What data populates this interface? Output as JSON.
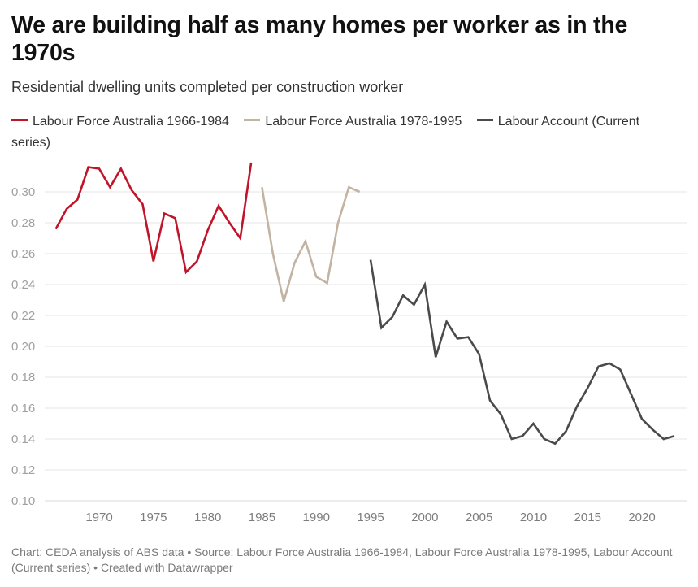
{
  "header": {
    "title": "We are building half as many homes per worker as in the 1970s",
    "subtitle": "Residential dwelling units completed per construction worker"
  },
  "legend": [
    {
      "label": "Labour Force Australia 1966-1984",
      "color": "#c0142a"
    },
    {
      "label": "Labour Force Australia 1978-1995",
      "color": "#c2b3a2"
    },
    {
      "label": "Labour Account (Current series)",
      "color": "#4a4a4a"
    }
  ],
  "footer": {
    "chart_credit": "Chart: CEDA analysis of ABS data",
    "separator": " • ",
    "source": "Source: Labour Force Australia 1966-1984, Labour Force Australia 1978-1995, Labour Account (Current series) ",
    "created": "Created with Datawrapper"
  },
  "chart_data": {
    "type": "line",
    "title": "We are building half as many homes per worker as in the 1970s",
    "subtitle": "Residential dwelling units completed per construction worker",
    "xlabel": "",
    "ylabel": "",
    "xlim": [
      1966,
      2023
    ],
    "ylim": [
      0.1,
      0.32
    ],
    "grid": true,
    "legend_position": "top-left",
    "x_ticks": [
      1970,
      1975,
      1980,
      1985,
      1990,
      1995,
      2000,
      2005,
      2010,
      2015,
      2020
    ],
    "x_tick_labels": [
      "1970",
      "1975",
      "1980",
      "1985",
      "1990",
      "1995",
      "2000",
      "2005",
      "2010",
      "2015",
      "2020"
    ],
    "y_ticks": [
      0.1,
      0.12,
      0.14,
      0.16,
      0.18,
      0.2,
      0.22,
      0.24,
      0.26,
      0.28,
      0.3
    ],
    "y_tick_labels": [
      "0.10",
      "0.12",
      "0.14",
      "0.16",
      "0.18",
      "0.20",
      "0.22",
      "0.24",
      "0.26",
      "0.28",
      "0.30"
    ],
    "series": [
      {
        "name": "Labour Force Australia 1966-1984",
        "color": "#c0142a",
        "x": [
          1966,
          1967,
          1968,
          1969,
          1970,
          1971,
          1972,
          1973,
          1974,
          1975,
          1976,
          1977,
          1978,
          1979,
          1980,
          1981,
          1982,
          1983,
          1984
        ],
        "values": [
          0.276,
          0.289,
          0.295,
          0.316,
          0.315,
          0.303,
          0.315,
          0.301,
          0.292,
          0.255,
          0.286,
          0.283,
          0.248,
          0.255,
          0.275,
          0.291,
          0.28,
          0.27,
          0.319
        ]
      },
      {
        "name": "Labour Force Australia 1978-1995",
        "color": "#c2b3a2",
        "x": [
          1985,
          1986,
          1987,
          1988,
          1989,
          1990,
          1991,
          1992,
          1993,
          1994
        ],
        "values": [
          0.303,
          0.26,
          0.229,
          0.254,
          0.268,
          0.245,
          0.241,
          0.28,
          0.303,
          0.3
        ]
      },
      {
        "name": "Labour Account (Current series)",
        "color": "#4a4a4a",
        "x": [
          1995,
          1996,
          1997,
          1998,
          1999,
          2000,
          2001,
          2002,
          2003,
          2004,
          2005,
          2006,
          2007,
          2008,
          2009,
          2010,
          2011,
          2012,
          2013,
          2014,
          2015,
          2016,
          2017,
          2018,
          2019,
          2020,
          2021,
          2022,
          2023
        ],
        "values": [
          0.256,
          0.212,
          0.219,
          0.233,
          0.227,
          0.24,
          0.193,
          0.216,
          0.205,
          0.206,
          0.195,
          0.165,
          0.156,
          0.14,
          0.142,
          0.15,
          0.14,
          0.137,
          0.145,
          0.161,
          0.173,
          0.187,
          0.189,
          0.185,
          0.169,
          0.153,
          0.146,
          0.14,
          0.142
        ]
      }
    ]
  }
}
